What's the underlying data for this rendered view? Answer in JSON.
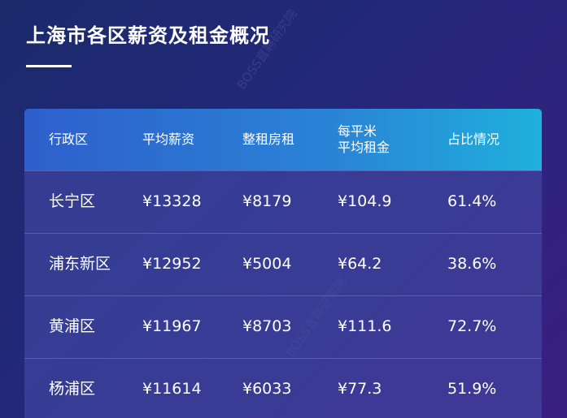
{
  "title": "上海市各区薪资及租金概况",
  "watermark": "BOSS直聘研究院",
  "table": {
    "header": [
      "行政区",
      "平均薪资",
      "整租房租",
      "每平米\n平均租金",
      "占比情况"
    ],
    "rows": [
      [
        "长宁区",
        "¥13328",
        "¥8179",
        "¥104.9",
        "61.4%"
      ],
      [
        "浦东新区",
        "¥12952",
        "¥5004",
        "¥64.2",
        "38.6%"
      ],
      [
        "黄浦区",
        "¥11967",
        "¥8703",
        "¥111.6",
        "72.7%"
      ],
      [
        "杨浦区",
        "¥11614",
        "¥6033",
        "¥77.3",
        "51.9%"
      ]
    ]
  }
}
